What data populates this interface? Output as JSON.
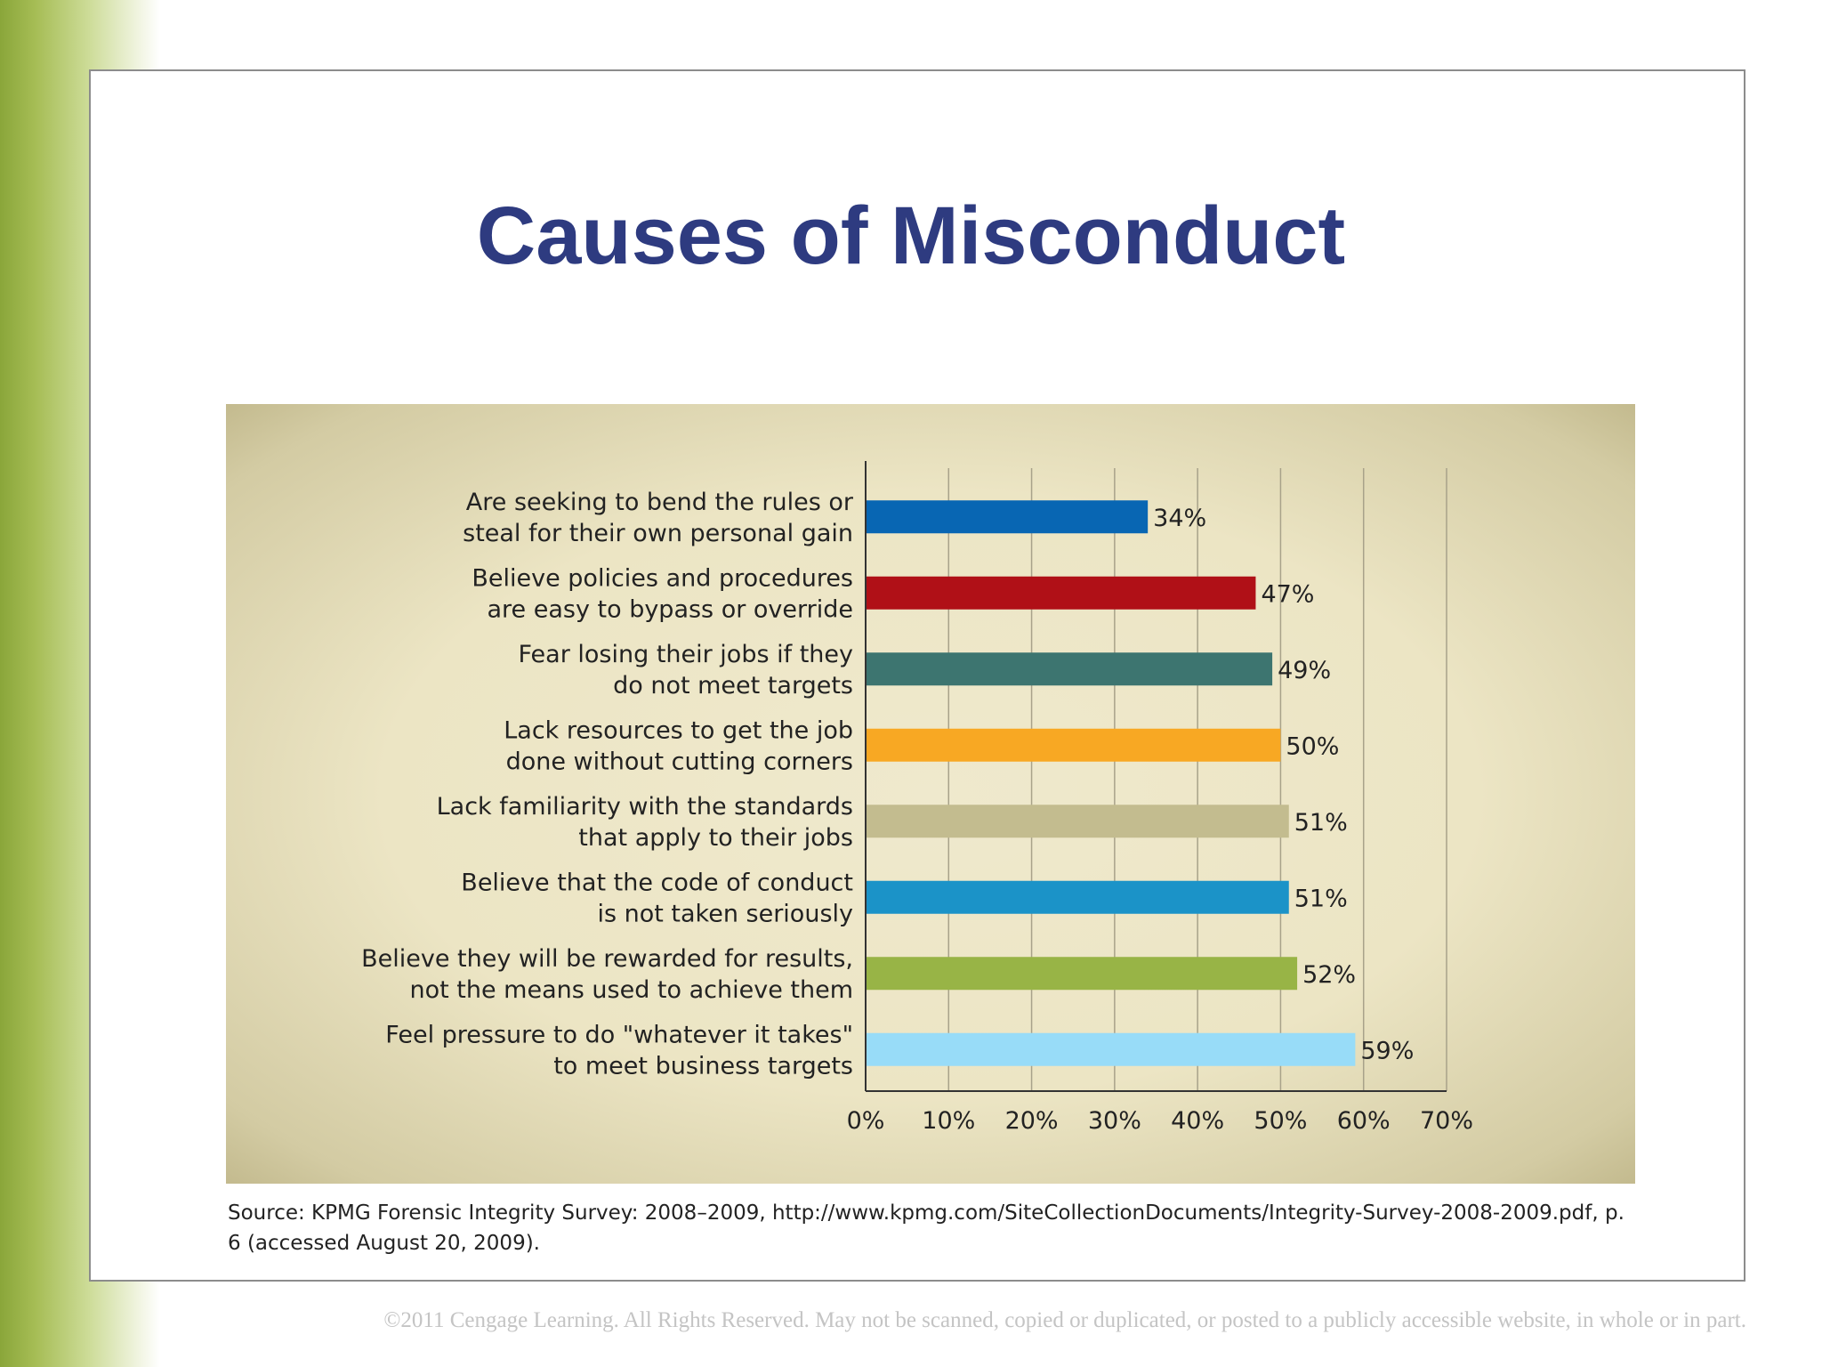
{
  "slide": {
    "title": "Causes of Misconduct",
    "source": "Source: KPMG Forensic Integrity Survey: 2008–2009, http://www.kpmg.com/SiteCollectionDocuments/Integrity-Survey-2008-2009.pdf, p. 6 (accessed August 20, 2009).",
    "copyright": "©2011 Cengage Learning. All Rights Reserved. May not be scanned, copied or duplicated, or posted to a publicly accessible website, in whole or in part."
  },
  "chart_data": {
    "type": "bar",
    "orientation": "horizontal",
    "categories": [
      [
        "Are seeking to bend the rules or",
        "steal for their own personal gain"
      ],
      [
        "Believe policies and procedures",
        "are easy to bypass or override"
      ],
      [
        "Fear losing their jobs if they",
        "do not meet targets"
      ],
      [
        "Lack resources to get the job",
        "done without cutting corners"
      ],
      [
        "Lack familiarity with the standards",
        "that apply to their jobs"
      ],
      [
        "Believe that the code of conduct",
        "is not taken seriously"
      ],
      [
        "Believe they will be rewarded for results,",
        "not the means used to achieve them"
      ],
      [
        "Feel pressure to do \"whatever it takes\"",
        "to meet business targets"
      ]
    ],
    "values": [
      34,
      47,
      49,
      50,
      51,
      51,
      52,
      59
    ],
    "value_labels": [
      "34%",
      "47%",
      "49%",
      "50%",
      "51%",
      "51%",
      "52%",
      "59%"
    ],
    "colors": [
      "#0866b3",
      "#b01017",
      "#3d7570",
      "#f8a823",
      "#c3bc8f",
      "#1b93c8",
      "#98b446",
      "#98dcf8"
    ],
    "xlim": [
      0,
      70
    ],
    "xticks": [
      0,
      10,
      20,
      30,
      40,
      50,
      60,
      70
    ],
    "xtick_labels": [
      "0%",
      "10%",
      "20%",
      "30%",
      "40%",
      "50%",
      "60%",
      "70%"
    ],
    "grid": true,
    "legend": false
  }
}
